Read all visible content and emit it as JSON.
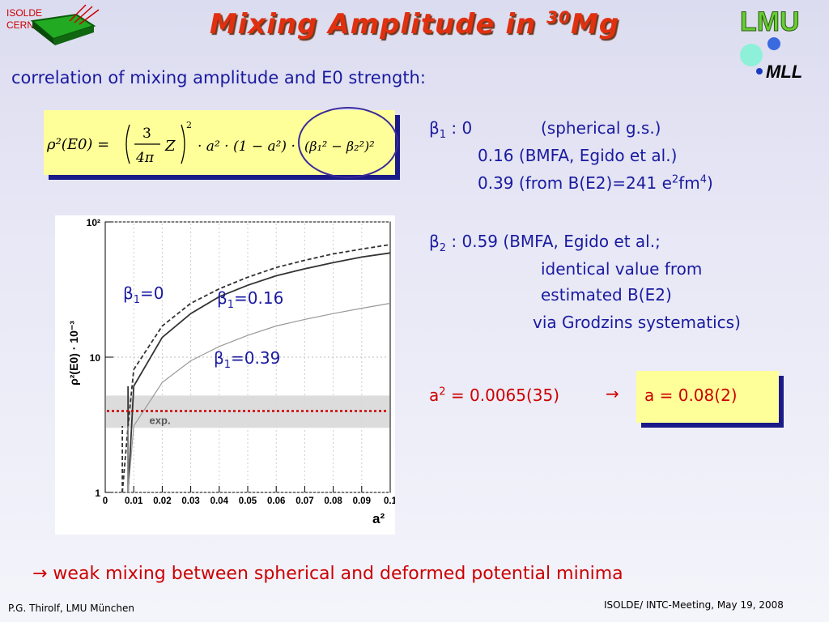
{
  "logos": {
    "isolde": "ISOLDE",
    "cern": "CERN",
    "lmu": "LMU",
    "mll": "MLL"
  },
  "title": {
    "prefix": "Mixing Amplitude in ",
    "mass": "30",
    "element": "Mg"
  },
  "subtitle": "correlation of mixing amplitude and  E0 strength:",
  "formula": {
    "lhs": "ρ²(E0) =",
    "frac_num": "3",
    "frac_den": "4π",
    "z": "Z",
    "rest": "· a² · (1 − a²) ·",
    "bracket": "(β₁² − β₂²)²"
  },
  "plot": {
    "ylabel": "ρ²(E0) · 10⁻³",
    "xlabel": "a²",
    "yticks": [
      "1",
      "10",
      "10²"
    ],
    "xticks": [
      "0",
      "0.01",
      "0.02",
      "0.03",
      "0.04",
      "0.05",
      "0.06",
      "0.07",
      "0.08",
      "0.09",
      "0.1"
    ],
    "exp_label": "exp.",
    "labels": {
      "b0": "=0",
      "b016": "=0.16",
      "b039": "=0.39"
    }
  },
  "beta1": {
    "label": " :  0",
    "v0_note": "(spherical g.s.)",
    "line2": "0.16  (BMFA, Egido et al.)",
    "line3_pre": "0.39 (from B(E2)=241 e",
    "line3_mid": "fm",
    "line3_end": ")",
    "sup2": "2",
    "sup4": "4"
  },
  "beta2": {
    "label": " :  0.59 (BMFA, Egido et al.;",
    "line2": "identical value from",
    "line3": "estimated B(E2)",
    "line4": "via Grodzins systematics)"
  },
  "a2": {
    "lhs_pre": "a",
    "lhs_post": " = 0.0065(35)",
    "arrow": "→",
    "result": "a = 0.08(2)"
  },
  "conclusion": {
    "arrow": "→",
    "text": " weak mixing between spherical and deformed potential minima"
  },
  "footer": {
    "left": "P.G. Thirolf,  LMU München",
    "right": "ISOLDE/ INTC-Meeting, May 19, 2008"
  },
  "chart_data": {
    "type": "line",
    "ylabel": "ρ²(E0) · 10⁻³",
    "xlabel": "a²",
    "xlim": [
      0,
      0.1
    ],
    "ylim": [
      1,
      100
    ],
    "yscale": "log",
    "series": [
      {
        "name": "β1=0",
        "style": "dashed",
        "x": [
          0.006,
          0.008,
          0.01,
          0.02,
          0.03,
          0.04,
          0.05,
          0.06,
          0.07,
          0.08,
          0.09,
          0.1
        ],
        "y": [
          1,
          3.1,
          8.1,
          17,
          25,
          32,
          39,
          46,
          52,
          58,
          63,
          68
        ]
      },
      {
        "name": "β1=0.16",
        "style": "solid",
        "x": [
          0.008,
          0.01,
          0.02,
          0.03,
          0.04,
          0.05,
          0.06,
          0.07,
          0.08,
          0.09,
          0.1
        ],
        "y": [
          1,
          6.1,
          14,
          21,
          28,
          34,
          40,
          45,
          50,
          55,
          59
        ]
      },
      {
        "name": "β1=0.39",
        "style": "solid-light",
        "x": [
          0.008,
          0.01,
          0.02,
          0.03,
          0.04,
          0.05,
          0.06,
          0.07,
          0.08,
          0.09,
          0.1
        ],
        "y": [
          1,
          3.1,
          6.5,
          9.4,
          12,
          14.5,
          17,
          19,
          21,
          23,
          25
        ]
      }
    ],
    "band": {
      "label": "exp.",
      "ymin": 3.0,
      "ymax": 5.2,
      "center": 4.0
    }
  },
  "colors": {
    "title": "#e03010",
    "blue_text": "#1a1aa0",
    "red_text": "#cc0000",
    "yellow_box": "#ffff99"
  }
}
